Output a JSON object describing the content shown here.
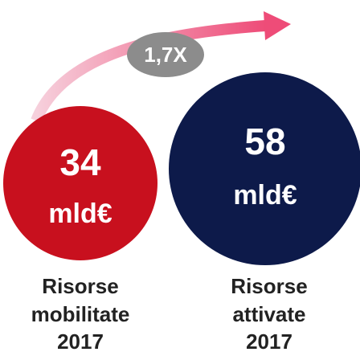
{
  "multiplier": "1,7X",
  "items": [
    {
      "value": "34",
      "unit": "mld€",
      "label": [
        "Risorse",
        "mobilitate",
        "2017"
      ]
    },
    {
      "value": "58",
      "unit": "mld€",
      "label": [
        "Risorse",
        "attivate",
        "2017"
      ]
    }
  ]
}
